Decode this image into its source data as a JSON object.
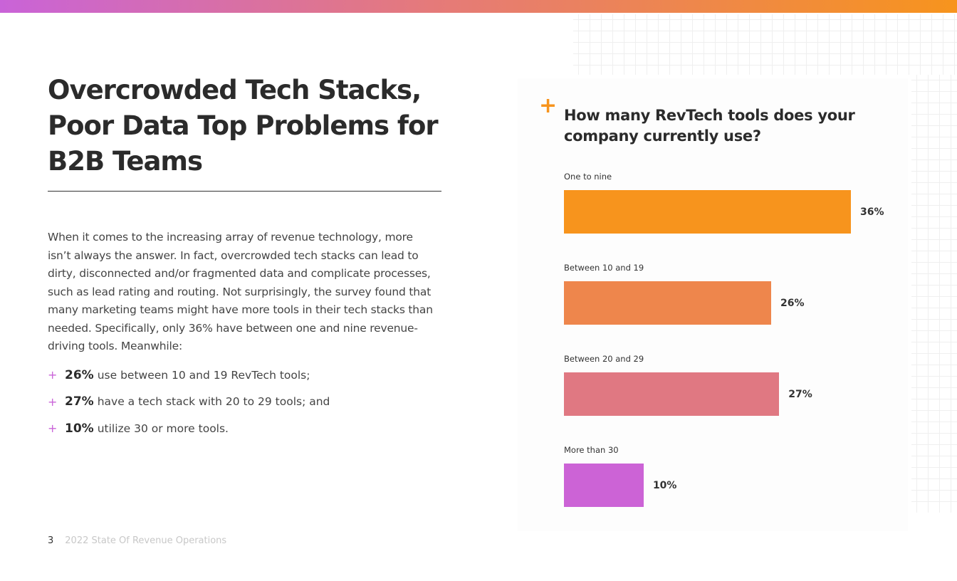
{
  "title": "Overcrowded Tech Stacks, Poor Data Top Problems for B2B Teams",
  "paragraph": "When it comes to the increasing array of revenue technology, more isn’t always the answer. In fact, overcrowded tech stacks can lead to dirty, disconnected and/or fragmented data and complicate processes, such as lead rating and routing. Not surprisingly, the survey found that many marketing teams might have more tools in their tech stacks than needed. Specifically, only 36% have between one and nine revenue-driving tools. Meanwhile:",
  "bullets": [
    {
      "bold": "26%",
      "text": "use between 10 and 19 RevTech tools;"
    },
    {
      "bold": "27%",
      "text": "have a tech stack with 20 to 29 tools; and"
    },
    {
      "bold": "10%",
      "text": "utilize 30 or more tools."
    }
  ],
  "bullet_marker": "+",
  "footer": {
    "page": "3",
    "title": "2022 State Of Revenue Operations"
  },
  "colors": {
    "orange": "#f7941d",
    "purple": "#c963d8"
  },
  "chart_data": {
    "type": "bar",
    "orientation": "horizontal",
    "title": "How many RevTech tools does your company currently use?",
    "title_marker": "+",
    "categories": [
      "One to nine",
      "Between 10 and 19",
      "Between 20 and 29",
      "More than 30"
    ],
    "values": [
      36,
      26,
      27,
      10
    ],
    "labels": [
      "36%",
      "26%",
      "27%",
      "10%"
    ],
    "colors": [
      "#f7941d",
      "#ee864c",
      "#e07882",
      "#cc63d6"
    ],
    "xlabel": "",
    "ylabel": "",
    "grid": false
  }
}
